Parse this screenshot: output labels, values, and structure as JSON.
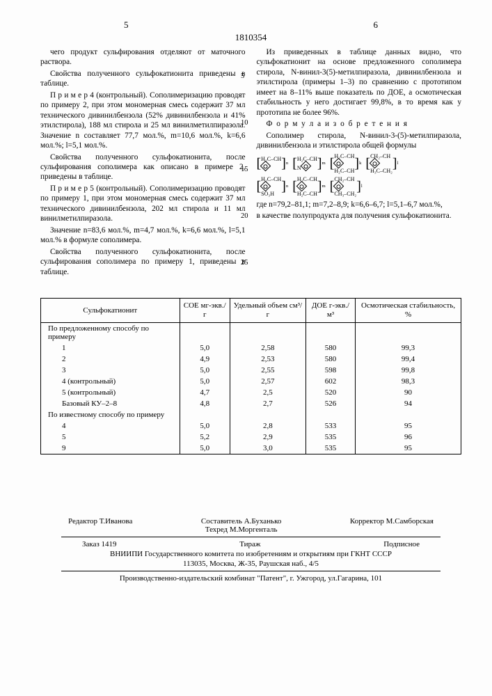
{
  "header": {
    "left_num": "5",
    "right_num": "6",
    "doc_number": "1810354"
  },
  "line_numbers": [
    "5",
    "10",
    "15",
    "20",
    "25"
  ],
  "left_col": {
    "p1": "чего продукт сульфирования отделяют от маточного раствора.",
    "p2": "Свойства полученного сульфокатионита приведены в таблице.",
    "p3": "П р и м е р 4 (контрольный). Сополимеризацию проводят по примеру 2, при этом мономерная смесь содержит 37 мл технического дивинилбензола (52% дивинилбензола и 41% этилстирола), 188 мл стирола и 25 мл винилметилпиразола. Значение n составляет 77,7 мол.%, m=10,6 мол.%, k=6,6 мол.%; l=5,1 мол.%.",
    "p4": "Свойства полученного сульфокатионита, после сульфирования сополимера как описано в примере 2, приведены в таблице.",
    "p5": "П р и м е р 5 (контрольный). Сополимеризацию проводят по примеру 1, при этом мономерная смесь содержит 37 мл технического дивинилбензола, 202 мл стирола и 11 мл винилметилпиразола.",
    "p6": "Значение n=83,6 мол.%, m=4,7 мол.%, k=6,6 мол.%, l=5,1 мол.% в формуле сополимера.",
    "p7": "Свойства полученного сульфокатионита, после сульфирования сополимера по примеру 1, приведены в таблице."
  },
  "right_col": {
    "p1": "Из приведенных в таблице данных видно, что сульфокатионит на основе предложенного сополимера стирола, N-винил-3(5)-метилпиразола, дивинилбензола и этилстирола (примеры 1–3) по сравнению с прототипом имеет на 8–11% выше показатель по ДОЕ, а осмотическая стабильность у него достигает 99,8%, в то время как у прототипа не более 96%.",
    "p2_title": "Ф о р м у л а  и з о б р е т е н и я",
    "p3": "Сополимер стирола, N-винил-3-(5)-метилпиразола, дивинилбензола и этилстирола общей формулы",
    "p4": "где n=79,2–81,1; m=7,2–8,9; k=6,6–6,7; l=5,1–6,7 мол.%,",
    "p5": "в качестве полупродукта для получения сульфокатионита."
  },
  "formula": {
    "row1_labels": [
      "H₂C–CH",
      "H₂C–CH",
      "H₂C–CH",
      "CH₂–CH"
    ],
    "row1_sub": [
      "",
      "N",
      "",
      ""
    ],
    "row1_idx": [
      "n",
      "m",
      "k",
      "l"
    ],
    "row2_labels": [
      "H₂C–CH",
      "H₂C–CH",
      "CH₂–CH"
    ],
    "row2_sub": [
      "SO₃H",
      "H₂C–CH",
      "CH₃–CH₂"
    ],
    "row2_idx": [
      "n",
      "m",
      "l"
    ]
  },
  "table": {
    "columns": [
      "Сульфокатионит",
      "СОЕ мг-экв./г",
      "Удельный объем см³/г",
      "ДОЕ г-экв./м³",
      "Осмотическая стабильность, %"
    ],
    "sections": [
      {
        "title": "По предложенному способу по примеру",
        "rows": [
          [
            "1",
            "5,0",
            "2,58",
            "580",
            "99,3"
          ],
          [
            "2",
            "4,9",
            "2,53",
            "580",
            "99,4"
          ],
          [
            "3",
            "5,0",
            "2,55",
            "598",
            "99,8"
          ],
          [
            "4 (контрольный)",
            "5,0",
            "2,57",
            "602",
            "98,3"
          ],
          [
            "5 (контрольный)",
            "4,7",
            "2,5",
            "520",
            "90"
          ],
          [
            "Базовый КУ–2–8",
            "4,8",
            "2,7",
            "526",
            "94"
          ]
        ]
      },
      {
        "title": "По известному способу по примеру",
        "rows": [
          [
            "4",
            "5,0",
            "2,8",
            "533",
            "95"
          ],
          [
            "5",
            "5,2",
            "2,9",
            "535",
            "96"
          ],
          [
            "9",
            "5,0",
            "3,0",
            "535",
            "95"
          ]
        ]
      }
    ]
  },
  "footer": {
    "editor": "Редактор Т.Иванова",
    "compiler": "Составитель А.Буханько",
    "tech": "Техред М.Моргенталь",
    "corrector": "Корректор М.Самборская",
    "order": "Заказ 1419",
    "tirage": "Тираж",
    "subscription": "Подписное",
    "vniipi1": "ВНИИПИ Государственного комитета по изобретениям и открытиям при ГКНТ СССР",
    "vniipi2": "113035, Москва, Ж-35, Раушская наб., 4/5",
    "printer": "Производственно-издательский комбинат \"Патент\", г. Ужгород, ул.Гагарина, 101"
  }
}
